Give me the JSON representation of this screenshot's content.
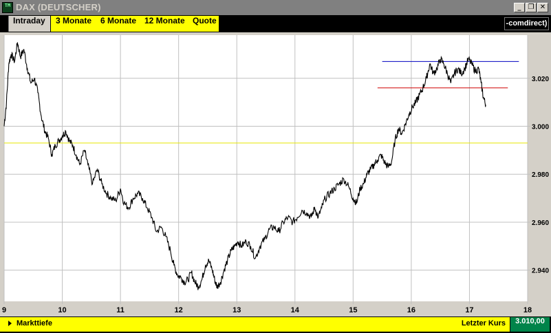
{
  "window": {
    "icon_text": "TM",
    "title": "DAX (DEUTSCHER)",
    "controls": [
      "_",
      "❐",
      "✕"
    ]
  },
  "tabs": [
    {
      "label": "Intraday",
      "active": true
    },
    {
      "label": "3 Monate",
      "active": false
    },
    {
      "label": "6 Monate",
      "active": false
    },
    {
      "label": "12 Monate",
      "active": false
    },
    {
      "label": "Quote",
      "active": false
    }
  ],
  "brand": "-comdirect)",
  "bottom": {
    "left_label": "Markttiefe",
    "right_label": "Letzter Kurs",
    "last_price": "3.010,00"
  },
  "colors": {
    "chart_bg": "#ffffff",
    "grid": "#c0c0c0",
    "yellow_line": "#e6e600",
    "blue_line": "#0000c0",
    "red_line": "#d00000",
    "accent_yellow": "#ffff00",
    "price_box": "#00844a"
  },
  "chart_data": {
    "type": "line",
    "x_ticks": [
      "9",
      "10",
      "11",
      "12",
      "13",
      "14",
      "15",
      "16",
      "17",
      "18"
    ],
    "y_ticks": [
      "2.940",
      "2.960",
      "2.980",
      "3.000",
      "3.020"
    ],
    "y_tick_values": [
      2940,
      2960,
      2980,
      3000,
      3020
    ],
    "xlim": [
      9,
      18
    ],
    "ylim": [
      2927,
      3038
    ],
    "reference_lines": [
      {
        "color": "yellow",
        "y": 2993,
        "x_from": 9,
        "x_to": 18
      },
      {
        "color": "blue",
        "y": 3027,
        "x_from": 15.5,
        "x_to": 17.85
      },
      {
        "color": "red",
        "y": 3016,
        "x_from": 15.42,
        "x_to": 17.66
      }
    ],
    "series": [
      {
        "points": [
          [
            9.0,
            3000
          ],
          [
            9.04,
            3010
          ],
          [
            9.08,
            3026
          ],
          [
            9.12,
            3030
          ],
          [
            9.18,
            3027
          ],
          [
            9.23,
            3035
          ],
          [
            9.28,
            3029
          ],
          [
            9.34,
            3032
          ],
          [
            9.4,
            3024
          ],
          [
            9.46,
            3018
          ],
          [
            9.52,
            3020
          ],
          [
            9.58,
            3014
          ],
          [
            9.64,
            3004
          ],
          [
            9.7,
            2998
          ],
          [
            9.76,
            2995
          ],
          [
            9.82,
            2988
          ],
          [
            9.88,
            2992
          ],
          [
            9.94,
            2994
          ],
          [
            10.0,
            2996
          ],
          [
            10.06,
            2998
          ],
          [
            10.12,
            2994
          ],
          [
            10.18,
            2992
          ],
          [
            10.24,
            2988
          ],
          [
            10.3,
            2984
          ],
          [
            10.38,
            2990
          ],
          [
            10.44,
            2984
          ],
          [
            10.52,
            2976
          ],
          [
            10.6,
            2982
          ],
          [
            10.68,
            2976
          ],
          [
            10.76,
            2972
          ],
          [
            10.84,
            2970
          ],
          [
            10.92,
            2969
          ],
          [
            11.0,
            2974
          ],
          [
            11.06,
            2968
          ],
          [
            11.14,
            2966
          ],
          [
            11.22,
            2970
          ],
          [
            11.3,
            2972
          ],
          [
            11.38,
            2970
          ],
          [
            11.46,
            2966
          ],
          [
            11.54,
            2962
          ],
          [
            11.62,
            2956
          ],
          [
            11.7,
            2958
          ],
          [
            11.78,
            2954
          ],
          [
            11.86,
            2948
          ],
          [
            11.92,
            2942
          ],
          [
            11.98,
            2938
          ],
          [
            12.04,
            2937
          ],
          [
            12.1,
            2935
          ],
          [
            12.16,
            2936
          ],
          [
            12.22,
            2939
          ],
          [
            12.28,
            2935
          ],
          [
            12.34,
            2933
          ],
          [
            12.4,
            2936
          ],
          [
            12.46,
            2942
          ],
          [
            12.52,
            2944
          ],
          [
            12.58,
            2940
          ],
          [
            12.62,
            2936
          ],
          [
            12.66,
            2933
          ],
          [
            12.72,
            2935
          ],
          [
            12.78,
            2940
          ],
          [
            12.84,
            2944
          ],
          [
            12.9,
            2948
          ],
          [
            12.96,
            2950
          ],
          [
            13.02,
            2952
          ],
          [
            13.08,
            2950
          ],
          [
            13.16,
            2952
          ],
          [
            13.24,
            2950
          ],
          [
            13.32,
            2945
          ],
          [
            13.4,
            2950
          ],
          [
            13.48,
            2953
          ],
          [
            13.56,
            2957
          ],
          [
            13.64,
            2958
          ],
          [
            13.72,
            2956
          ],
          [
            13.8,
            2960
          ],
          [
            13.88,
            2962
          ],
          [
            13.96,
            2960
          ],
          [
            14.04,
            2962
          ],
          [
            14.12,
            2965
          ],
          [
            14.2,
            2964
          ],
          [
            14.28,
            2962
          ],
          [
            14.34,
            2966
          ],
          [
            14.4,
            2962
          ],
          [
            14.46,
            2966
          ],
          [
            14.52,
            2970
          ],
          [
            14.6,
            2972
          ],
          [
            14.68,
            2974
          ],
          [
            14.76,
            2976
          ],
          [
            14.84,
            2978
          ],
          [
            14.92,
            2975
          ],
          [
            15.0,
            2970
          ],
          [
            15.06,
            2968
          ],
          [
            15.12,
            2974
          ],
          [
            15.18,
            2976
          ],
          [
            15.24,
            2980
          ],
          [
            15.3,
            2982
          ],
          [
            15.36,
            2984
          ],
          [
            15.42,
            2986
          ],
          [
            15.48,
            2988
          ],
          [
            15.54,
            2985
          ],
          [
            15.6,
            2983
          ],
          [
            15.66,
            2985
          ],
          [
            15.72,
            2994
          ],
          [
            15.78,
            2999
          ],
          [
            15.84,
            2997
          ],
          [
            15.9,
            3001
          ],
          [
            15.96,
            3005
          ],
          [
            16.02,
            3008
          ],
          [
            16.08,
            3010
          ],
          [
            16.14,
            3013
          ],
          [
            16.2,
            3016
          ],
          [
            16.26,
            3020
          ],
          [
            16.32,
            3026
          ],
          [
            16.38,
            3022
          ],
          [
            16.44,
            3024
          ],
          [
            16.5,
            3028
          ],
          [
            16.56,
            3026
          ],
          [
            16.62,
            3022
          ],
          [
            16.68,
            3018
          ],
          [
            16.74,
            3022
          ],
          [
            16.8,
            3024
          ],
          [
            16.86,
            3022
          ],
          [
            16.92,
            3024
          ],
          [
            16.98,
            3028
          ],
          [
            17.04,
            3026
          ],
          [
            17.1,
            3023
          ],
          [
            17.16,
            3024
          ],
          [
            17.2,
            3018
          ],
          [
            17.24,
            3012
          ],
          [
            17.28,
            3009
          ]
        ]
      }
    ]
  }
}
